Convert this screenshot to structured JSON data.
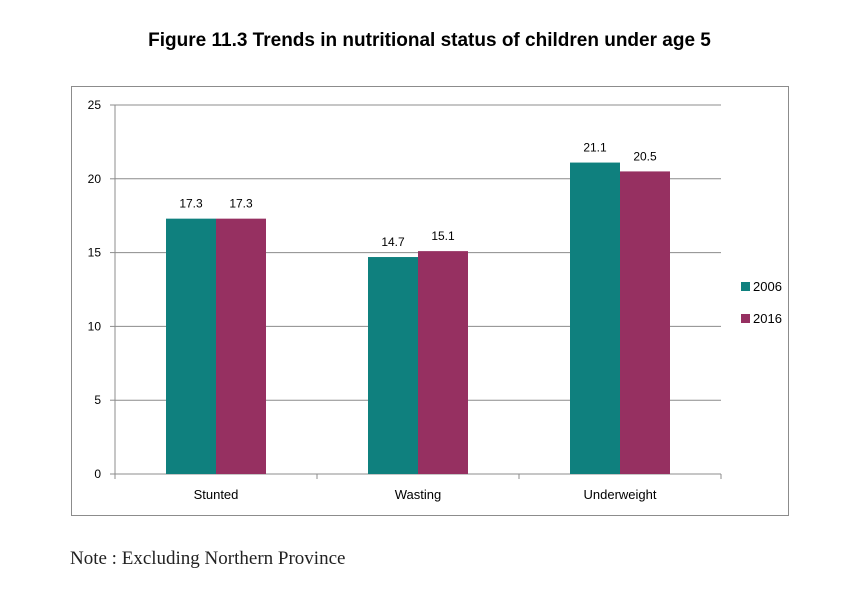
{
  "chart_data": {
    "type": "bar",
    "title": "Figure 11.3 Trends in nutritional status of children under age 5",
    "categories": [
      "Stunted",
      "Wasting",
      "Underweight"
    ],
    "series": [
      {
        "name": "2006",
        "values": [
          17.3,
          14.7,
          21.1
        ],
        "color": "#0f807e"
      },
      {
        "name": "2016",
        "values": [
          17.3,
          15.1,
          20.5
        ],
        "color": "#963061"
      }
    ],
    "value_labels": [
      [
        "17.3",
        "14.7",
        "21.1"
      ],
      [
        "17.3",
        "15.1",
        "20.5"
      ]
    ],
    "ylim": [
      0,
      25
    ],
    "yticks": [
      0,
      5,
      10,
      15,
      20,
      25
    ],
    "xlabel": "",
    "ylabel": "",
    "grid": true,
    "legend": "right"
  },
  "note": "Note : Excluding Northern Province"
}
